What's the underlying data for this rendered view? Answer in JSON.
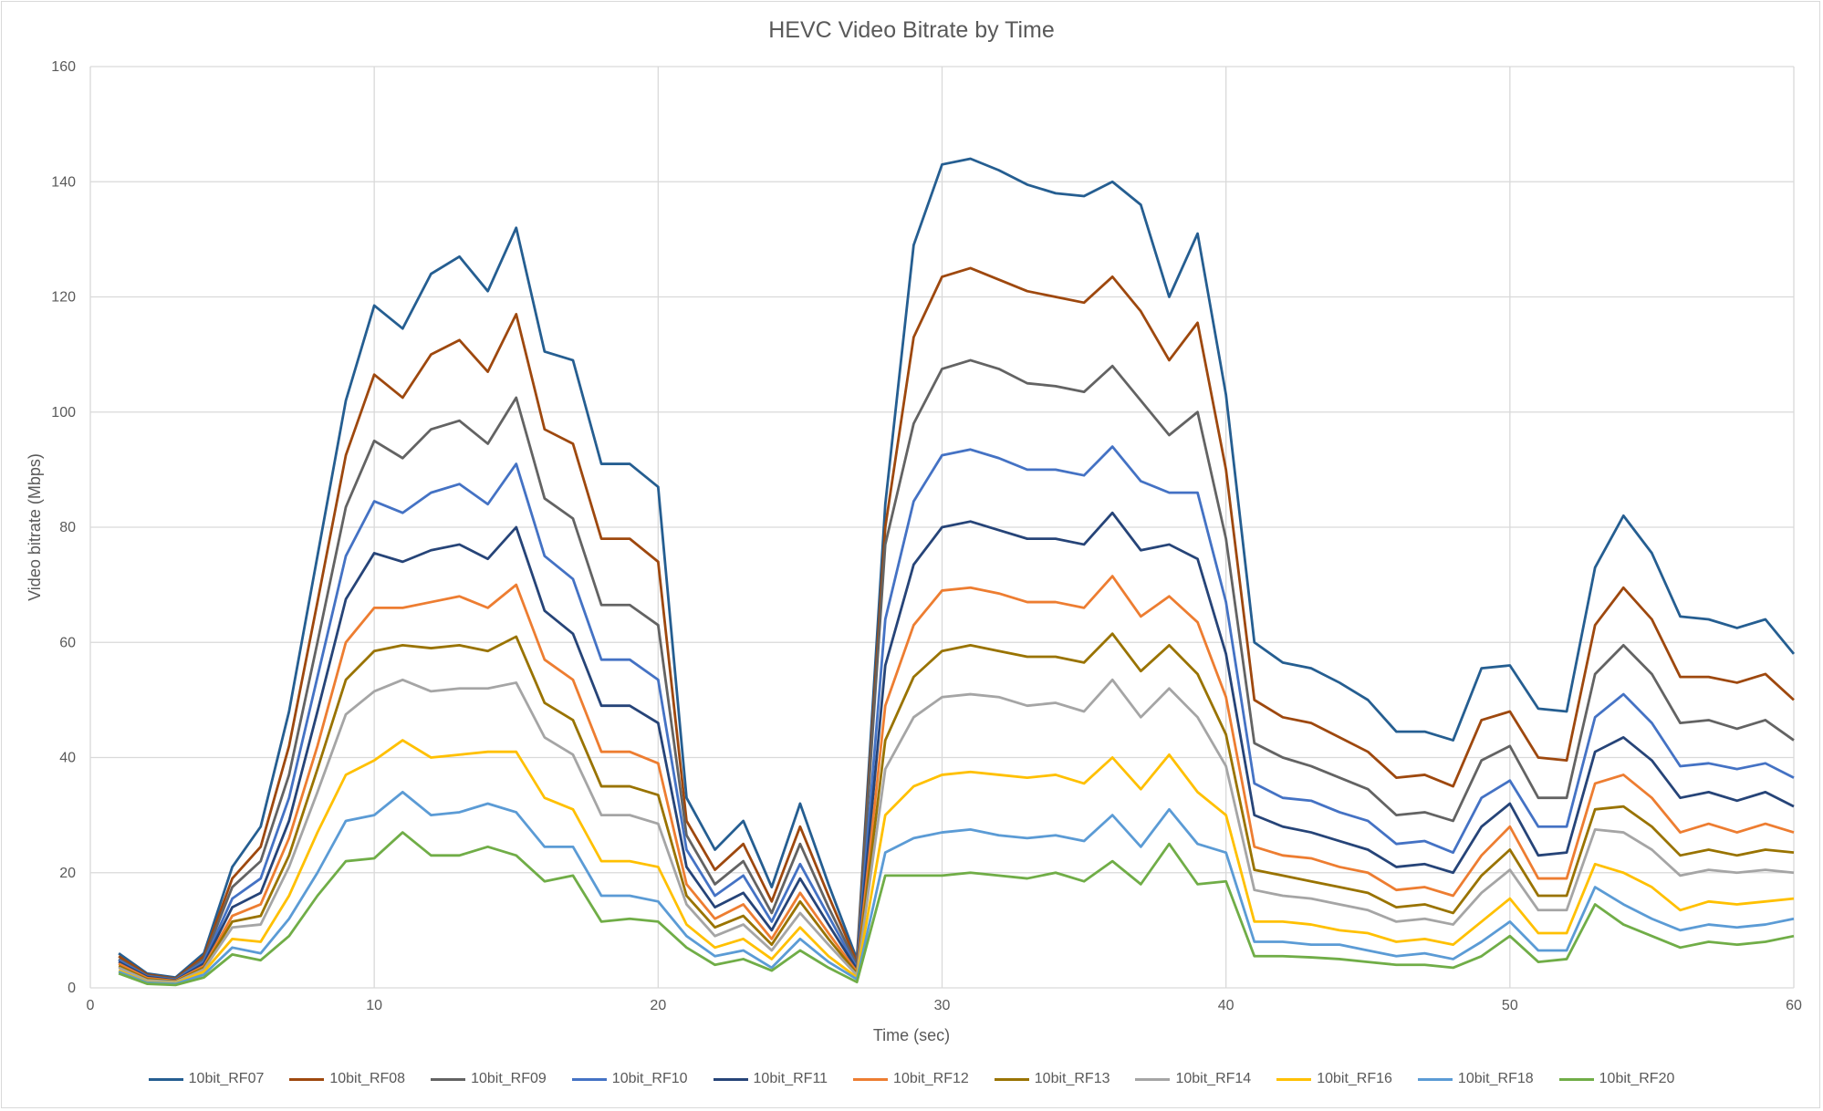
{
  "chart_data": {
    "type": "line",
    "title": "HEVC Video Bitrate by Time",
    "xlabel": "Time (sec)",
    "ylabel": "Video bitrate (Mbps)",
    "xlim": [
      0,
      60
    ],
    "ylim": [
      0,
      160
    ],
    "xticks": [
      0,
      10,
      20,
      30,
      40,
      50,
      60
    ],
    "yticks": [
      0,
      20,
      40,
      60,
      80,
      100,
      120,
      140,
      160
    ],
    "grid": true,
    "legend_position": "bottom",
    "x": [
      1,
      2,
      3,
      4,
      5,
      6,
      7,
      8,
      9,
      10,
      11,
      12,
      13,
      14,
      15,
      16,
      17,
      18,
      19,
      20,
      21,
      22,
      23,
      24,
      25,
      26,
      27,
      28,
      29,
      30,
      31,
      32,
      33,
      34,
      35,
      36,
      37,
      38,
      39,
      40,
      41,
      42,
      43,
      44,
      45,
      46,
      47,
      48,
      49,
      50,
      51,
      52,
      53,
      54,
      55,
      56,
      57,
      58,
      59,
      60
    ],
    "series": [
      {
        "name": "10bit_RF07",
        "color": "#255E91",
        "values": [
          6,
          2.5,
          1.8,
          6,
          21,
          28,
          48,
          75,
          102,
          118.5,
          114.5,
          124,
          127,
          121,
          132,
          110.5,
          109,
          91,
          91,
          87,
          33,
          24,
          29,
          17.5,
          32,
          18,
          5,
          84,
          129,
          143,
          144,
          142,
          139.5,
          138,
          137.5,
          140,
          136,
          120,
          131,
          103,
          60,
          56.5,
          55.5,
          53,
          50,
          44.5,
          44.5,
          43,
          55.5,
          56,
          48.5,
          48,
          73,
          82,
          75.5,
          64.5,
          64,
          62.5,
          64,
          58
        ]
      },
      {
        "name": "10bit_RF08",
        "color": "#9E480E",
        "values": [
          5.5,
          2.3,
          1.6,
          5.5,
          19,
          24.5,
          42,
          67,
          92.5,
          106.5,
          102.5,
          110,
          112.5,
          107,
          117,
          97,
          94.5,
          78,
          78,
          74,
          29,
          20.5,
          25,
          15,
          28,
          16,
          4.5,
          80,
          113,
          123.5,
          125,
          123,
          121,
          120,
          119,
          123.5,
          117.5,
          109,
          115.5,
          90,
          50,
          47,
          46,
          43.5,
          41,
          36.5,
          37,
          35,
          46.5,
          48,
          40,
          39.5,
          63,
          69.5,
          64,
          54,
          54,
          53,
          54.5,
          50
        ]
      },
      {
        "name": "10bit_RF09",
        "color": "#636363",
        "values": [
          5,
          2.1,
          1.5,
          5,
          17.5,
          22,
          37,
          60,
          83.5,
          95,
          92,
          97,
          98.5,
          94.5,
          102.5,
          85,
          81.5,
          66.5,
          66.5,
          63,
          26.5,
          18,
          22,
          13,
          25,
          14,
          4,
          77,
          98,
          107.5,
          109,
          107.5,
          105,
          104.5,
          103.5,
          108,
          102,
          96,
          100,
          78,
          42.5,
          40,
          38.5,
          36.5,
          34.5,
          30,
          30.5,
          29,
          39.5,
          42,
          33,
          33,
          54.5,
          59.5,
          54.5,
          46,
          46.5,
          45,
          46.5,
          43
        ]
      },
      {
        "name": "10bit_RF10",
        "color": "#4472C4",
        "values": [
          4.8,
          2,
          1.4,
          4.6,
          15.5,
          19,
          33,
          54,
          75,
          84.5,
          82.5,
          86,
          87.5,
          84,
          91,
          75,
          71,
          57,
          57,
          53.5,
          24,
          16,
          19.5,
          11.5,
          21.5,
          12.5,
          3.5,
          64,
          84.5,
          92.5,
          93.5,
          92,
          90,
          90,
          89,
          94,
          88,
          86,
          86,
          67,
          35.5,
          33,
          32.5,
          30.5,
          29,
          25,
          25.5,
          23.5,
          33,
          36,
          28,
          28,
          47,
          51,
          46,
          38.5,
          39,
          38,
          39,
          36.5
        ]
      },
      {
        "name": "10bit_RF11",
        "color": "#264478",
        "values": [
          4.5,
          1.9,
          1.3,
          4.2,
          14,
          16.5,
          29,
          48,
          67.5,
          75.5,
          74,
          76,
          77,
          74.5,
          80,
          65.5,
          61.5,
          49,
          49,
          46,
          21,
          14,
          16.5,
          10,
          19,
          11,
          3.2,
          56,
          73.5,
          80,
          81,
          79.5,
          78,
          78,
          77,
          82.5,
          76,
          77,
          74.5,
          58,
          30,
          28,
          27,
          25.5,
          24,
          21,
          21.5,
          20,
          28,
          32,
          23,
          23.5,
          41,
          43.5,
          39.5,
          33,
          34,
          32.5,
          34,
          31.5
        ]
      },
      {
        "name": "10bit_RF12",
        "color": "#ED7D31",
        "values": [
          4.2,
          1.7,
          1.2,
          3.8,
          12.5,
          14.5,
          26,
          42,
          60,
          66,
          66,
          67,
          68,
          66,
          70,
          57,
          53.5,
          41,
          41,
          39,
          18,
          12,
          14.5,
          8.5,
          16.5,
          9.5,
          2.8,
          49,
          63,
          69,
          69.5,
          68.5,
          67,
          67,
          66,
          71.5,
          64.5,
          68,
          63.5,
          50.5,
          24.5,
          23,
          22.5,
          21,
          20,
          17,
          17.5,
          16,
          23,
          28,
          19,
          19,
          35.5,
          37,
          33,
          27,
          28.5,
          27,
          28.5,
          27
        ]
      },
      {
        "name": "10bit_RF13",
        "color": "#997300",
        "values": [
          3.8,
          1.5,
          1.1,
          3.5,
          11.5,
          12.5,
          23,
          38,
          53.5,
          58.5,
          59.5,
          59,
          59.5,
          58.5,
          61,
          49.5,
          46.5,
          35,
          35,
          33.5,
          16,
          10.5,
          12.5,
          7.5,
          15,
          8.5,
          2.5,
          43,
          54,
          58.5,
          59.5,
          58.5,
          57.5,
          57.5,
          56.5,
          61.5,
          55,
          59.5,
          54.5,
          44,
          20.5,
          19.5,
          18.5,
          17.5,
          16.5,
          14,
          14.5,
          13,
          19.5,
          24,
          16,
          16,
          31,
          31.5,
          28,
          23,
          24,
          23,
          24,
          23.5
        ]
      },
      {
        "name": "10bit_RF14",
        "color": "#A5A5A5",
        "values": [
          3.5,
          1.3,
          1,
          3.2,
          10.5,
          11,
          21,
          34,
          47.5,
          51.5,
          53.5,
          51.5,
          52,
          52,
          53,
          43.5,
          40.5,
          30,
          30,
          28.5,
          14.5,
          9,
          11,
          6.5,
          13,
          7.5,
          2.2,
          38,
          47,
          50.5,
          51,
          50.5,
          49,
          49.5,
          48,
          53.5,
          47,
          52,
          47,
          38.5,
          17,
          16,
          15.5,
          14.5,
          13.5,
          11.5,
          12,
          11,
          16.5,
          20.5,
          13.5,
          13.5,
          27.5,
          27,
          24,
          19.5,
          20.5,
          20,
          20.5,
          20
        ]
      },
      {
        "name": "10bit_RF16",
        "color": "#FFC000",
        "values": [
          3,
          1,
          0.8,
          2.8,
          8.5,
          8,
          16,
          27,
          37,
          39.5,
          43,
          40,
          40.5,
          41,
          41,
          33,
          31,
          22,
          22,
          21,
          11,
          7,
          8.5,
          5,
          10.5,
          5.5,
          1.8,
          30,
          35,
          37,
          37.5,
          37,
          36.5,
          37,
          35.5,
          40,
          34.5,
          40.5,
          34,
          30,
          11.5,
          11.5,
          11,
          10,
          9.5,
          8,
          8.5,
          7.5,
          11.5,
          15.5,
          9.5,
          9.5,
          21.5,
          20,
          17.5,
          13.5,
          15,
          14.5,
          15,
          15.5
        ]
      },
      {
        "name": "10bit_RF18",
        "color": "#5B9BD5",
        "values": [
          2.8,
          0.9,
          0.7,
          2.3,
          7,
          6,
          12,
          20,
          29,
          30,
          34,
          30,
          30.5,
          32,
          30.5,
          24.5,
          24.5,
          16,
          16,
          15,
          9,
          5.5,
          6.5,
          3.5,
          8.5,
          4.5,
          1.5,
          23.5,
          26,
          27,
          27.5,
          26.5,
          26,
          26.5,
          25.5,
          30,
          24.5,
          31,
          25,
          23.5,
          8,
          8,
          7.5,
          7.5,
          6.5,
          5.5,
          6,
          5,
          8,
          11.5,
          6.5,
          6.5,
          17.5,
          14.5,
          12,
          10,
          11,
          10.5,
          11,
          12
        ]
      },
      {
        "name": "10bit_RF20",
        "color": "#70AD47",
        "values": [
          2.5,
          0.7,
          0.5,
          1.8,
          5.8,
          4.8,
          9,
          16,
          22,
          22.5,
          27,
          23,
          23,
          24.5,
          23,
          18.5,
          19.5,
          11.5,
          12,
          11.5,
          7,
          4,
          5,
          3,
          6.5,
          3.5,
          1,
          19.5,
          19.5,
          19.5,
          20,
          19.5,
          19,
          20,
          18.5,
          22,
          18,
          25,
          18,
          18.5,
          5.5,
          5.5,
          5.3,
          5,
          4.5,
          4,
          4,
          3.5,
          5.5,
          9,
          4.5,
          5,
          14.5,
          11,
          9,
          7,
          8,
          7.5,
          8,
          9
        ]
      }
    ]
  }
}
